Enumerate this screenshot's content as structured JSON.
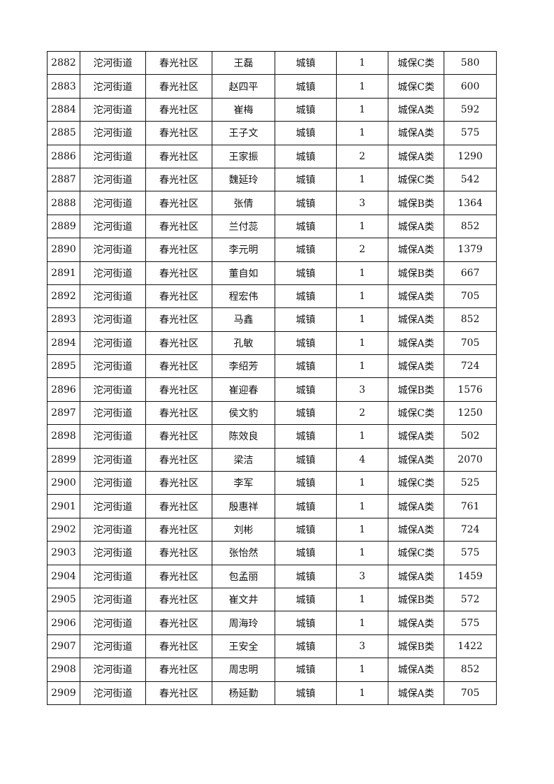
{
  "rows": [
    [
      "2882",
      "沱河街道",
      "春光社区",
      "王磊",
      "城镇",
      "1",
      "城保C类",
      "580"
    ],
    [
      "2883",
      "沱河街道",
      "春光社区",
      "赵四平",
      "城镇",
      "1",
      "城保C类",
      "600"
    ],
    [
      "2884",
      "沱河街道",
      "春光社区",
      "崔梅",
      "城镇",
      "1",
      "城保A类",
      "592"
    ],
    [
      "2885",
      "沱河街道",
      "春光社区",
      "王子文",
      "城镇",
      "1",
      "城保A类",
      "575"
    ],
    [
      "2886",
      "沱河街道",
      "春光社区",
      "王家振",
      "城镇",
      "2",
      "城保A类",
      "1290"
    ],
    [
      "2887",
      "沱河街道",
      "春光社区",
      "魏延玲",
      "城镇",
      "1",
      "城保C类",
      "542"
    ],
    [
      "2888",
      "沱河街道",
      "春光社区",
      "张倩",
      "城镇",
      "3",
      "城保B类",
      "1364"
    ],
    [
      "2889",
      "沱河街道",
      "春光社区",
      "兰付蕊",
      "城镇",
      "1",
      "城保A类",
      "852"
    ],
    [
      "2890",
      "沱河街道",
      "春光社区",
      "李元明",
      "城镇",
      "2",
      "城保A类",
      "1379"
    ],
    [
      "2891",
      "沱河街道",
      "春光社区",
      "董自如",
      "城镇",
      "1",
      "城保B类",
      "667"
    ],
    [
      "2892",
      "沱河街道",
      "春光社区",
      "程宏伟",
      "城镇",
      "1",
      "城保A类",
      "705"
    ],
    [
      "2893",
      "沱河街道",
      "春光社区",
      "马鑫",
      "城镇",
      "1",
      "城保A类",
      "852"
    ],
    [
      "2894",
      "沱河街道",
      "春光社区",
      "孔敏",
      "城镇",
      "1",
      "城保A类",
      "705"
    ],
    [
      "2895",
      "沱河街道",
      "春光社区",
      "李绍芳",
      "城镇",
      "1",
      "城保A类",
      "724"
    ],
    [
      "2896",
      "沱河街道",
      "春光社区",
      "崔迎春",
      "城镇",
      "3",
      "城保B类",
      "1576"
    ],
    [
      "2897",
      "沱河街道",
      "春光社区",
      "侯文豹",
      "城镇",
      "2",
      "城保C类",
      "1250"
    ],
    [
      "2898",
      "沱河街道",
      "春光社区",
      "陈效良",
      "城镇",
      "1",
      "城保A类",
      "502"
    ],
    [
      "2899",
      "沱河街道",
      "春光社区",
      "梁洁",
      "城镇",
      "4",
      "城保A类",
      "2070"
    ],
    [
      "2900",
      "沱河街道",
      "春光社区",
      "李军",
      "城镇",
      "1",
      "城保C类",
      "525"
    ],
    [
      "2901",
      "沱河街道",
      "春光社区",
      "殷惠祥",
      "城镇",
      "1",
      "城保A类",
      "761"
    ],
    [
      "2902",
      "沱河街道",
      "春光社区",
      "刘彬",
      "城镇",
      "1",
      "城保A类",
      "724"
    ],
    [
      "2903",
      "沱河街道",
      "春光社区",
      "张怡然",
      "城镇",
      "1",
      "城保C类",
      "575"
    ],
    [
      "2904",
      "沱河街道",
      "春光社区",
      "包孟丽",
      "城镇",
      "3",
      "城保A类",
      "1459"
    ],
    [
      "2905",
      "沱河街道",
      "春光社区",
      "崔文井",
      "城镇",
      "1",
      "城保B类",
      "572"
    ],
    [
      "2906",
      "沱河街道",
      "春光社区",
      "周海玲",
      "城镇",
      "1",
      "城保A类",
      "575"
    ],
    [
      "2907",
      "沱河街道",
      "春光社区",
      "王安全",
      "城镇",
      "3",
      "城保B类",
      "1422"
    ],
    [
      "2908",
      "沱河街道",
      "春光社区",
      "周忠明",
      "城镇",
      "1",
      "城保A类",
      "852"
    ],
    [
      "2909",
      "沱河街道",
      "春光社区",
      "杨延勤",
      "城镇",
      "1",
      "城保A类",
      "705"
    ]
  ]
}
